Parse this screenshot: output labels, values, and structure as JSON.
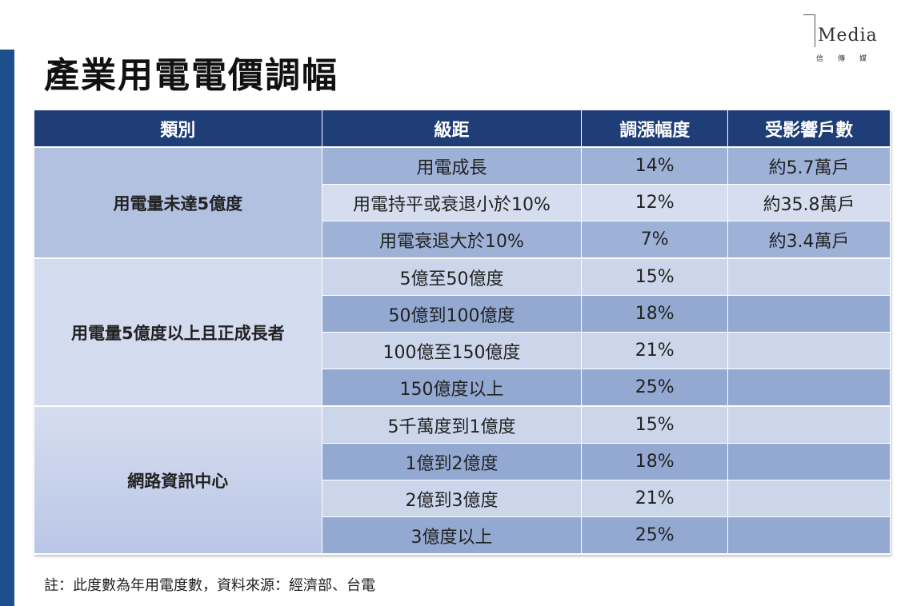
{
  "header": {
    "title": "產業用電電價調幅",
    "logo": {
      "name": "Media",
      "subtitle": "信傳媒"
    }
  },
  "table": {
    "headers": [
      "類別",
      "級距",
      "調漲幅度",
      "受影響戶數"
    ],
    "groups": [
      {
        "category": "用電量未達5億度",
        "rows": [
          {
            "range": "用電成長",
            "rate": "14%",
            "households": "約5.7萬戶"
          },
          {
            "range": "用電持平或衰退小於10%",
            "rate": "12%",
            "households": "約35.8萬戶"
          },
          {
            "range": "用電衰退大於10%",
            "rate": "7%",
            "households": "約3.4萬戶"
          }
        ]
      },
      {
        "category": "用電量5億度以上且正成長者",
        "rows": [
          {
            "range": "5億至50億度",
            "rate": "15%"
          },
          {
            "range": "50億到100億度",
            "rate": "18%"
          },
          {
            "range": "100億至150億度",
            "rate": "21%"
          },
          {
            "range": "150億度以上",
            "rate": "25%"
          }
        ]
      },
      {
        "category": "網路資訊中心",
        "rows": [
          {
            "range": "5千萬度到1億度",
            "rate": "15%"
          },
          {
            "range": "1億到2億度",
            "rate": "18%"
          },
          {
            "range": "2億到3億度",
            "rate": "21%"
          },
          {
            "range": "3億度以上",
            "rate": "25%"
          }
        ]
      }
    ]
  },
  "note": "註：此度數為年用電度數，資料來源：經濟部、台電"
}
